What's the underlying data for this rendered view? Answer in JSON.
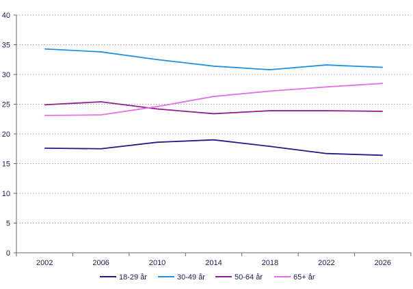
{
  "chart_data": {
    "type": "line",
    "title": "",
    "xlabel": "",
    "ylabel": "",
    "categories": [
      "2002",
      "2006",
      "2010",
      "2014",
      "2018",
      "2022",
      "2026"
    ],
    "ylim": [
      0,
      40
    ],
    "yticks": [
      0,
      5,
      10,
      15,
      20,
      25,
      30,
      35,
      40
    ],
    "grid": "horizontal dashed",
    "legend_position": "bottom",
    "series": [
      {
        "name": "18-29 år",
        "color": "#1f1b8c",
        "values": [
          17.6,
          17.5,
          18.6,
          19.0,
          17.9,
          16.7,
          16.4
        ]
      },
      {
        "name": "30-49 år",
        "color": "#1e90e8",
        "values": [
          34.3,
          33.8,
          32.5,
          31.4,
          30.8,
          31.6,
          31.2
        ]
      },
      {
        "name": "50-64 år",
        "color": "#8e1f8e",
        "values": [
          24.9,
          25.4,
          24.2,
          23.4,
          23.9,
          23.9,
          23.8
        ]
      },
      {
        "name": "65+ år",
        "color": "#e66ee6",
        "values": [
          23.1,
          23.2,
          24.6,
          26.3,
          27.2,
          27.9,
          28.5
        ]
      }
    ]
  }
}
